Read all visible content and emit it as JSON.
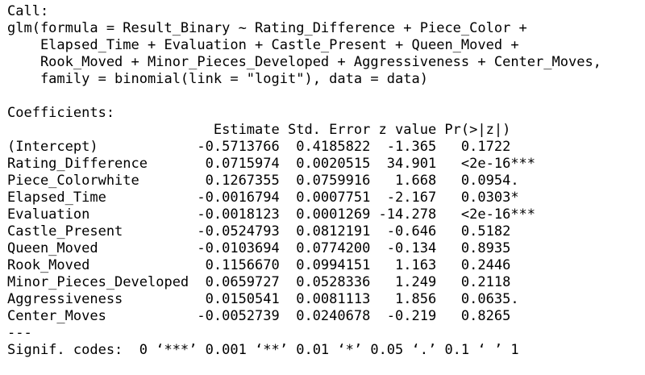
{
  "console": {
    "call": {
      "label": "Call:",
      "lines": [
        "glm(formula = Result_Binary ~ Rating_Difference + Piece_Color +",
        "Elapsed_Time + Evaluation + Castle_Present + Queen_Moved +",
        "Rook_Moved + Minor_Pieces_Developed + Aggressiveness + Center_Moves,",
        "family = binomial(link = \"logit\"), data = data)"
      ]
    },
    "coefficients": {
      "label": "Coefficients:",
      "columns": [
        "",
        "Estimate",
        "Std. Error",
        "z value",
        "Pr(>|z|)",
        ""
      ],
      "rows": [
        {
          "name": "(Intercept)",
          "estimate": "-0.5713766",
          "std_error": "0.4185822",
          "z_value": "-1.365",
          "p_value": "0.1722",
          "signif": ""
        },
        {
          "name": "Rating_Difference",
          "estimate": "0.0715974",
          "std_error": "0.0020515",
          "z_value": "34.901",
          "p_value": "<2e-16",
          "signif": "***"
        },
        {
          "name": "Piece_Colorwhite",
          "estimate": "0.1267355",
          "std_error": "0.0759916",
          "z_value": "1.668",
          "p_value": "0.0954",
          "signif": "."
        },
        {
          "name": "Elapsed_Time",
          "estimate": "-0.0016794",
          "std_error": "0.0007751",
          "z_value": "-2.167",
          "p_value": "0.0303",
          "signif": "*"
        },
        {
          "name": "Evaluation",
          "estimate": "-0.0018123",
          "std_error": "0.0001269",
          "z_value": "-14.278",
          "p_value": "<2e-16",
          "signif": "***"
        },
        {
          "name": "Castle_Present",
          "estimate": "-0.0524793",
          "std_error": "0.0812191",
          "z_value": "-0.646",
          "p_value": "0.5182",
          "signif": ""
        },
        {
          "name": "Queen_Moved",
          "estimate": "-0.0103694",
          "std_error": "0.0774200",
          "z_value": "-0.134",
          "p_value": "0.8935",
          "signif": ""
        },
        {
          "name": "Rook_Moved",
          "estimate": "0.1156670",
          "std_error": "0.0994151",
          "z_value": "1.163",
          "p_value": "0.2446",
          "signif": ""
        },
        {
          "name": "Minor_Pieces_Developed",
          "estimate": "0.0659727",
          "std_error": "0.0528336",
          "z_value": "1.249",
          "p_value": "0.2118",
          "signif": ""
        },
        {
          "name": "Aggressiveness",
          "estimate": "0.0150541",
          "std_error": "0.0081113",
          "z_value": "1.856",
          "p_value": "0.0635",
          "signif": "."
        },
        {
          "name": "Center_Moves",
          "estimate": "-0.0052739",
          "std_error": "0.0240678",
          "z_value": "-0.219",
          "p_value": "0.8265",
          "signif": ""
        }
      ]
    },
    "separator": "---",
    "signif_codes": "Signif. codes:  0 ‘***’ 0.001 ‘**’ 0.01 ‘*’ 0.05 ‘.’ 0.1 ‘ ’ 1"
  }
}
